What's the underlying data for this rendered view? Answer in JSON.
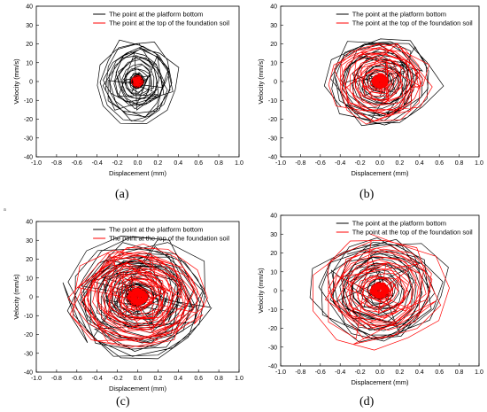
{
  "stray_mark": "a",
  "chart_data": [
    {
      "type": "phase-trajectory",
      "panel_label": "(a)",
      "xlabel": "Displacement (mm)",
      "ylabel": "Velocity (mm/s)",
      "xlim": [
        -1.0,
        1.0
      ],
      "ylim": [
        -40,
        40
      ],
      "xticks": [
        "-1.0",
        "-0.8",
        "-0.6",
        "-0.4",
        "-0.2",
        "0.0",
        "0.2",
        "0.4",
        "0.6",
        "0.8",
        "1.0"
      ],
      "yticks": [
        "40",
        "30",
        "20",
        "10",
        "0",
        "-10",
        "-20",
        "-30",
        "-40"
      ],
      "legend_position": "top-right",
      "series": [
        {
          "name": "The point at the platform bottom",
          "color": "#000000",
          "max_x_amp": 0.42,
          "max_y_amp": 24,
          "loops": 18,
          "seed": 11
        },
        {
          "name": "The point at the top of the foundation soil",
          "color": "#ff0000",
          "max_x_amp": 0.06,
          "max_y_amp": 3.5,
          "loops": 12,
          "seed": 12
        }
      ]
    },
    {
      "type": "phase-trajectory",
      "panel_label": "(b)",
      "xlabel": "Displacement (mm)",
      "ylabel": "Velocity (mm/s)",
      "xlim": [
        -1.0,
        1.0
      ],
      "ylim": [
        -40,
        40
      ],
      "xticks": [
        "-1.0",
        "-0.8",
        "-0.6",
        "-0.4",
        "-0.2",
        "0.0",
        "0.2",
        "0.4",
        "0.6",
        "0.8",
        "1.0"
      ],
      "yticks": [
        "40",
        "30",
        "20",
        "10",
        "0",
        "-10",
        "-20",
        "-30",
        "-40"
      ],
      "legend_position": "top-right",
      "series": [
        {
          "name": "The point at the platform bottom",
          "color": "#000000",
          "max_x_amp": 0.58,
          "max_y_amp": 27,
          "loops": 18,
          "seed": 21
        },
        {
          "name": "The point at the top of the foundation soil",
          "color": "#ff0000",
          "max_x_amp": 0.55,
          "max_y_amp": 25,
          "loops": 18,
          "seed": 22
        }
      ]
    },
    {
      "type": "phase-trajectory",
      "panel_label": "(c)",
      "xlabel": "Displacement (mm)",
      "ylabel": "Velocity (mm/s)",
      "xlim": [
        -1.0,
        1.0
      ],
      "ylim": [
        -40,
        40
      ],
      "xticks": [
        "-1.0",
        "-0.8",
        "-0.6",
        "-0.4",
        "-0.2",
        "0.0",
        "0.2",
        "0.4",
        "0.6",
        "0.8",
        "1.0"
      ],
      "yticks": [
        "40",
        "30",
        "20",
        "10",
        "0",
        "-10",
        "-20",
        "-30",
        "-40"
      ],
      "legend_position": "top-right",
      "series": [
        {
          "name": "The point at the platform bottom",
          "color": "#000000",
          "max_x_amp": 0.75,
          "max_y_amp": 34,
          "loops": 26,
          "seed": 31
        },
        {
          "name": "The point at the top of the foundation soil",
          "color": "#ff0000",
          "max_x_amp": 0.72,
          "max_y_amp": 32,
          "loops": 26,
          "seed": 32
        }
      ]
    },
    {
      "type": "phase-trajectory",
      "panel_label": "(d)",
      "xlabel": "Displacement (mm)",
      "ylabel": "Velocity (mm/s)",
      "xlim": [
        -1.0,
        1.0
      ],
      "ylim": [
        -40,
        40
      ],
      "xticks": [
        "-1.0",
        "-0.8",
        "-0.6",
        "-0.4",
        "-0.2",
        "0.0",
        "0.2",
        "0.4",
        "0.6",
        "0.8",
        "1.0"
      ],
      "yticks": [
        "40",
        "30",
        "20",
        "10",
        "0",
        "-10",
        "-20",
        "-30",
        "-40"
      ],
      "legend_position": "top-right",
      "series": [
        {
          "name": "The point at the platform bottom",
          "color": "#000000",
          "max_x_amp": 0.7,
          "max_y_amp": 32,
          "loops": 18,
          "seed": 41
        },
        {
          "name": "The point at the top of the foundation soil",
          "color": "#ff0000",
          "max_x_amp": 0.66,
          "max_y_amp": 30,
          "loops": 18,
          "seed": 42
        }
      ]
    }
  ]
}
